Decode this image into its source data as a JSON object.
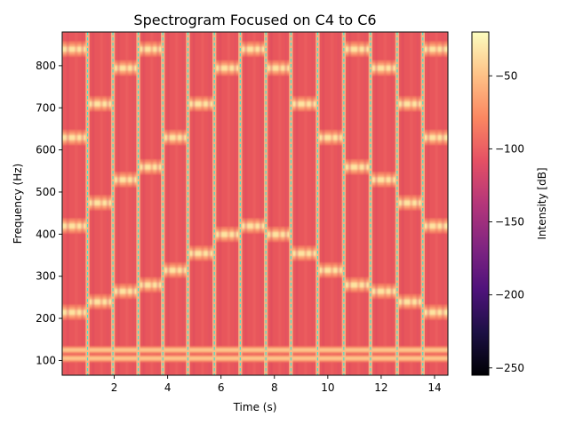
{
  "chart_data": {
    "type": "heatmap",
    "title": "Spectrogram Focused on C4 to C6",
    "xlabel": "Time (s)",
    "ylabel": "Frequency (Hz)",
    "xlim": [
      0.05,
      14.5
    ],
    "ylim": [
      65,
      880
    ],
    "xticks": [
      2,
      4,
      6,
      8,
      10,
      12,
      14
    ],
    "yticks": [
      100,
      200,
      300,
      400,
      500,
      600,
      700,
      800
    ],
    "colormap": "magma",
    "colorbar": {
      "label": "Intensity [dB]",
      "range": [
        -255,
        -20
      ],
      "ticks": [
        -50,
        -100,
        -150,
        -200,
        -250
      ],
      "tick_labels": [
        "−50",
        "−100",
        "−150",
        "−200",
        "−250"
      ]
    },
    "note_boundaries_s": [
      1.0,
      1.95,
      2.9,
      3.82,
      4.76,
      5.75,
      6.72,
      7.68,
      8.62,
      9.62,
      10.6,
      11.6,
      12.6,
      13.56
    ],
    "boundary_line_color": "#40e0d0",
    "segments": [
      {
        "start": 0.05,
        "end": 1.0,
        "peaks_hz": [
          215,
          420,
          630,
          840
        ]
      },
      {
        "start": 1.0,
        "end": 1.95,
        "peaks_hz": [
          240,
          475,
          710
        ]
      },
      {
        "start": 1.95,
        "end": 2.9,
        "peaks_hz": [
          265,
          530,
          795
        ]
      },
      {
        "start": 2.9,
        "end": 3.82,
        "peaks_hz": [
          280,
          560,
          840
        ]
      },
      {
        "start": 3.82,
        "end": 4.76,
        "peaks_hz": [
          315,
          630
        ]
      },
      {
        "start": 4.76,
        "end": 5.75,
        "peaks_hz": [
          355,
          710
        ]
      },
      {
        "start": 5.75,
        "end": 6.72,
        "peaks_hz": [
          400,
          795
        ]
      },
      {
        "start": 6.72,
        "end": 7.68,
        "peaks_hz": [
          420,
          840
        ]
      },
      {
        "start": 7.68,
        "end": 8.62,
        "peaks_hz": [
          400,
          795
        ]
      },
      {
        "start": 8.62,
        "end": 9.62,
        "peaks_hz": [
          355,
          710
        ]
      },
      {
        "start": 9.62,
        "end": 10.6,
        "peaks_hz": [
          315,
          630
        ]
      },
      {
        "start": 10.6,
        "end": 11.6,
        "peaks_hz": [
          280,
          560,
          840
        ]
      },
      {
        "start": 11.6,
        "end": 12.6,
        "peaks_hz": [
          265,
          530,
          795
        ]
      },
      {
        "start": 12.6,
        "end": 13.56,
        "peaks_hz": [
          240,
          475,
          710
        ]
      },
      {
        "start": 13.56,
        "end": 14.5,
        "peaks_hz": [
          215,
          420,
          630,
          840
        ]
      }
    ],
    "constant_bands_hz": [
      105,
      125
    ]
  }
}
